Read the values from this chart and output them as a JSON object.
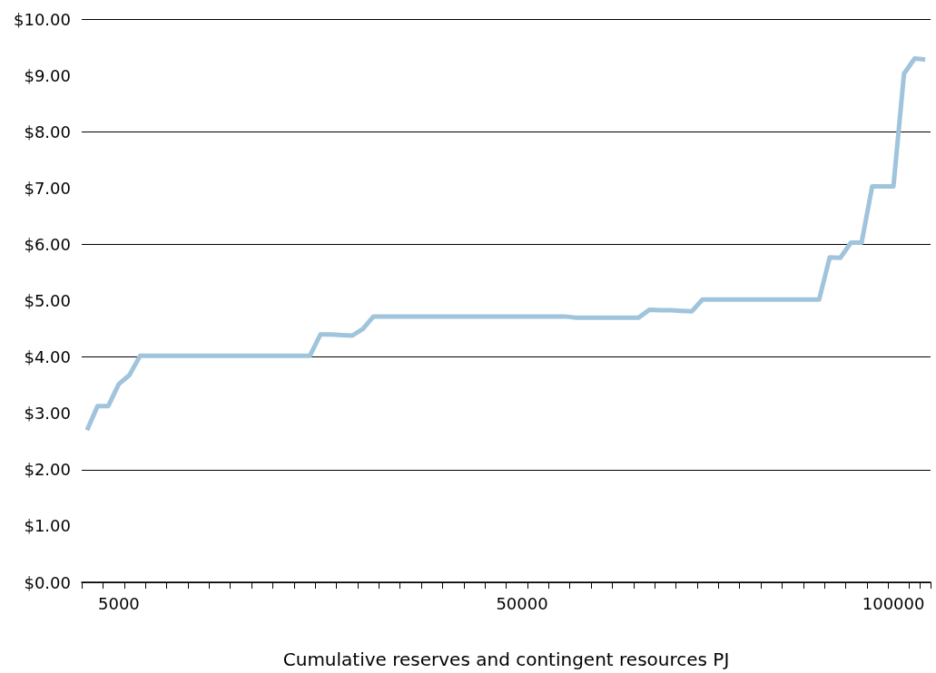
{
  "chart_data": {
    "type": "line",
    "xlabel": "Cumulative reserves and contingent resources PJ",
    "categories": [
      null,
      null,
      null,
      "5000",
      null,
      null,
      null,
      null,
      null,
      null,
      null,
      null,
      null,
      null,
      null,
      null,
      null,
      null,
      null,
      null,
      null,
      null,
      null,
      null,
      null,
      null,
      null,
      null,
      null,
      null,
      null,
      null,
      null,
      null,
      null,
      null,
      null,
      null,
      null,
      null,
      null,
      "50000",
      null,
      null,
      null,
      null,
      null,
      null,
      null,
      null,
      null,
      null,
      null,
      null,
      null,
      null,
      null,
      null,
      null,
      null,
      null,
      null,
      null,
      null,
      null,
      null,
      null,
      null,
      null,
      null,
      null,
      null,
      null,
      null,
      null,
      null,
      "100000",
      null,
      null,
      null
    ],
    "series": [
      {
        "color": "#a0c4dc",
        "values": [
          2.7,
          3.13,
          3.13,
          3.52,
          3.68,
          4.02,
          4.02,
          4.02,
          4.02,
          4.02,
          4.02,
          4.02,
          4.02,
          4.02,
          4.02,
          4.02,
          4.02,
          4.02,
          4.02,
          4.02,
          4.02,
          4.02,
          4.4,
          4.4,
          4.39,
          4.38,
          4.5,
          4.72,
          4.72,
          4.72,
          4.72,
          4.72,
          4.72,
          4.72,
          4.72,
          4.72,
          4.72,
          4.72,
          4.72,
          4.72,
          4.72,
          4.72,
          4.72,
          4.72,
          4.72,
          4.72,
          4.7,
          4.7,
          4.7,
          4.7,
          4.7,
          4.7,
          4.7,
          4.84,
          4.83,
          4.83,
          4.82,
          4.81,
          5.02,
          5.02,
          5.02,
          5.02,
          5.02,
          5.02,
          5.02,
          5.02,
          5.02,
          5.02,
          5.02,
          5.02,
          5.77,
          5.76,
          6.03,
          6.03,
          7.03,
          7.03,
          7.03,
          9.03,
          9.3,
          9.28
        ]
      }
    ],
    "ylim": [
      0,
      10
    ],
    "yticks": [
      {
        "value": 0,
        "label": "$0.00"
      },
      {
        "value": 1,
        "label": "$1.00"
      },
      {
        "value": 2,
        "label": "$2.00"
      },
      {
        "value": 3,
        "label": "$3.00"
      },
      {
        "value": 4,
        "label": "$4.00"
      },
      {
        "value": 5,
        "label": "$5.00"
      },
      {
        "value": 6,
        "label": "$6.00"
      },
      {
        "value": 7,
        "label": "$7.00"
      },
      {
        "value": 8,
        "label": "$8.00"
      },
      {
        "value": 9,
        "label": "$9.00"
      },
      {
        "value": 10,
        "label": "$10.00"
      }
    ],
    "grid": "y",
    "marker": "none",
    "line_style": "solid"
  }
}
